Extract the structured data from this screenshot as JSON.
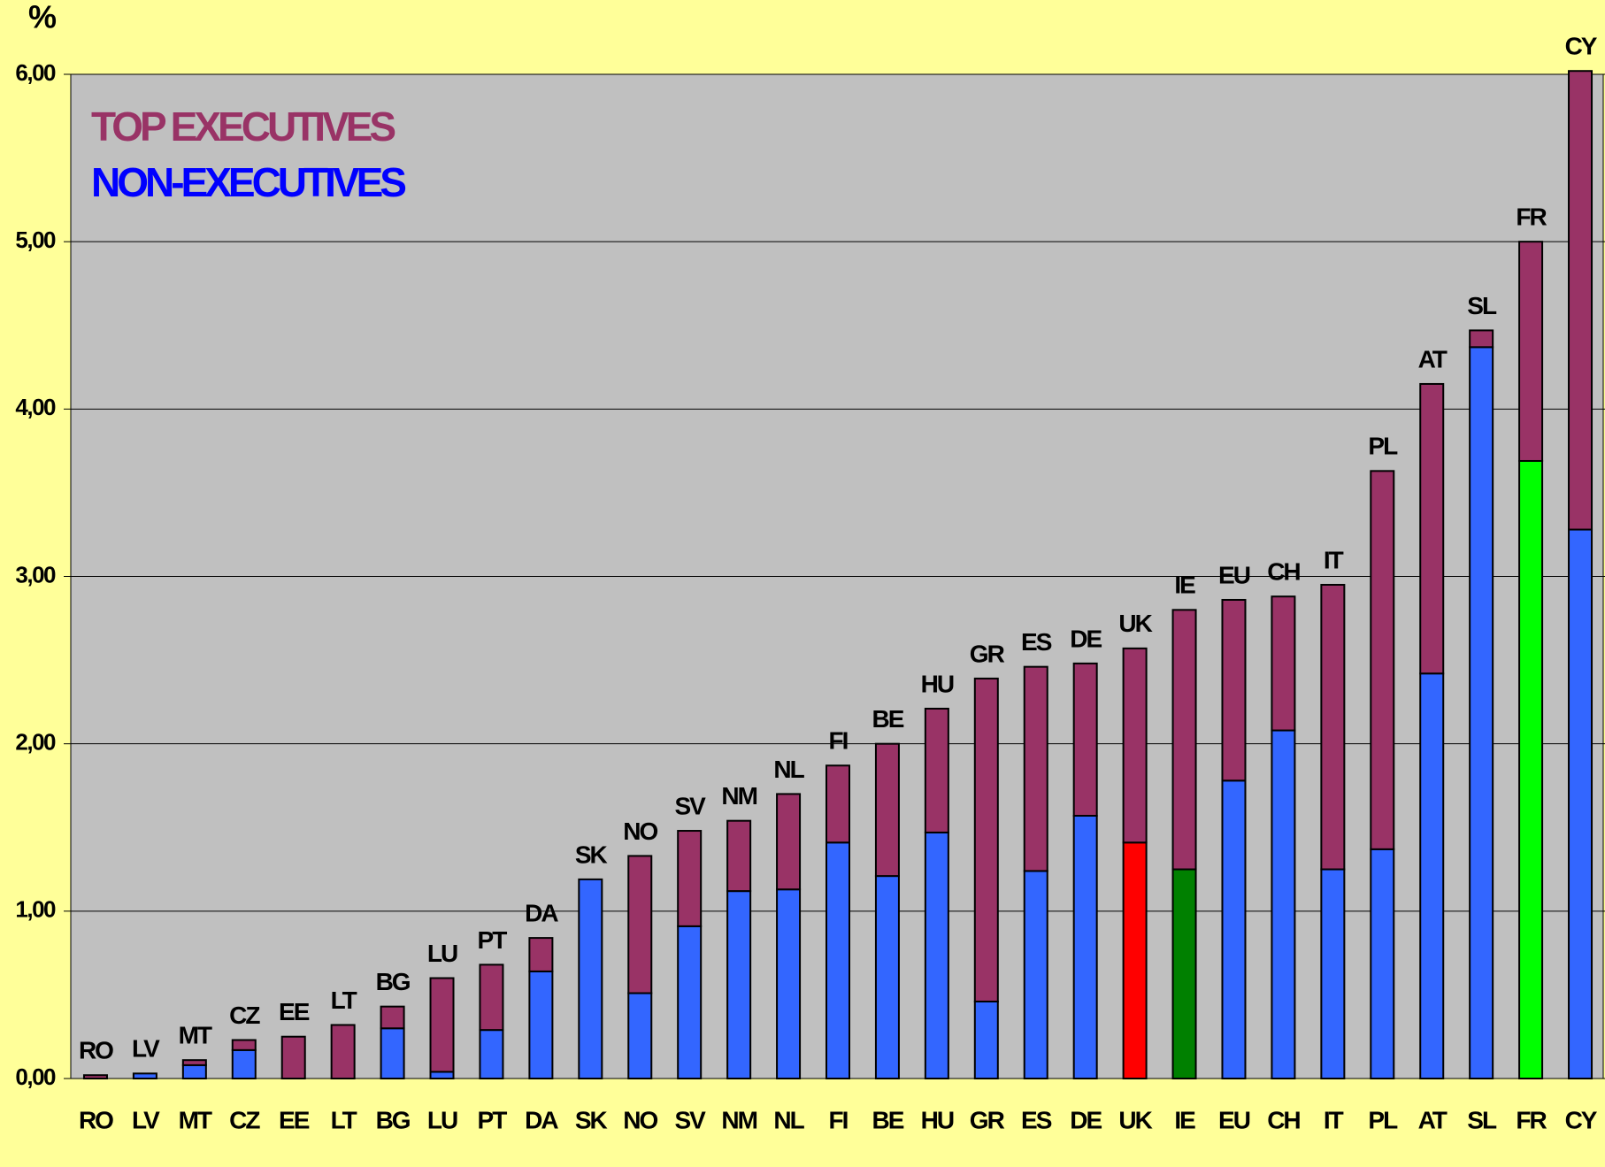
{
  "chart_data": {
    "type": "stacked-bar",
    "y_label": "%",
    "categories": [
      "RO",
      "LV",
      "MT",
      "CZ",
      "EE",
      "LT",
      "BG",
      "LU",
      "PT",
      "DA",
      "SK",
      "NO",
      "SV",
      "NM",
      "NL",
      "FI",
      "BE",
      "HU",
      "GR",
      "ES",
      "DE",
      "UK",
      "IE",
      "EU",
      "CH",
      "IT",
      "PL",
      "AT",
      "SL",
      "FR",
      "CY"
    ],
    "series": [
      {
        "name": "NON-EXECUTIVES",
        "color": "#0000ff",
        "bar_colors": [
          "#3366ff",
          "#3366ff",
          "#3366ff",
          "#3366ff",
          "#3366ff",
          "#3366ff",
          "#3366ff",
          "#3366ff",
          "#3366ff",
          "#3366ff",
          "#3366ff",
          "#3366ff",
          "#3366ff",
          "#3366ff",
          "#3366ff",
          "#3366ff",
          "#3366ff",
          "#3366ff",
          "#3366ff",
          "#3366ff",
          "#3366ff",
          "#ff0000",
          "#008000",
          "#3366ff",
          "#3366ff",
          "#3366ff",
          "#3366ff",
          "#3366ff",
          "#3366ff",
          "#00ff00",
          "#3366ff"
        ],
        "values": [
          0,
          0.03,
          0.08,
          0.17,
          0,
          0,
          0.3,
          0.04,
          0.29,
          0.64,
          1.19,
          0.51,
          0.91,
          1.12,
          1.13,
          1.41,
          1.21,
          1.47,
          0.46,
          1.24,
          1.57,
          1.41,
          1.25,
          1.78,
          2.08,
          1.25,
          1.37,
          2.42,
          4.37,
          3.69,
          3.28
        ]
      },
      {
        "name": "TOP EXECUTIVES",
        "color": "#993366",
        "values": [
          0.02,
          0,
          0.03,
          0.06,
          0.25,
          0.32,
          0.13,
          0.56,
          0.39,
          0.2,
          0,
          0.82,
          0.57,
          0.42,
          0.57,
          0.46,
          0.79,
          0.74,
          1.93,
          1.22,
          0.91,
          1.16,
          1.55,
          1.08,
          0.8,
          1.7,
          2.26,
          1.73,
          0.1,
          1.31,
          2.74
        ]
      }
    ],
    "ylim": [
      0,
      6
    ],
    "yticks": [
      {
        "value": 0,
        "label": "0,00"
      },
      {
        "value": 1,
        "label": "1,00"
      },
      {
        "value": 2,
        "label": "2,00"
      },
      {
        "value": 3,
        "label": "3,00"
      },
      {
        "value": 4,
        "label": "4,00"
      },
      {
        "value": 5,
        "label": "5,00"
      },
      {
        "value": 6,
        "label": "6,00"
      }
    ],
    "grid": true
  }
}
